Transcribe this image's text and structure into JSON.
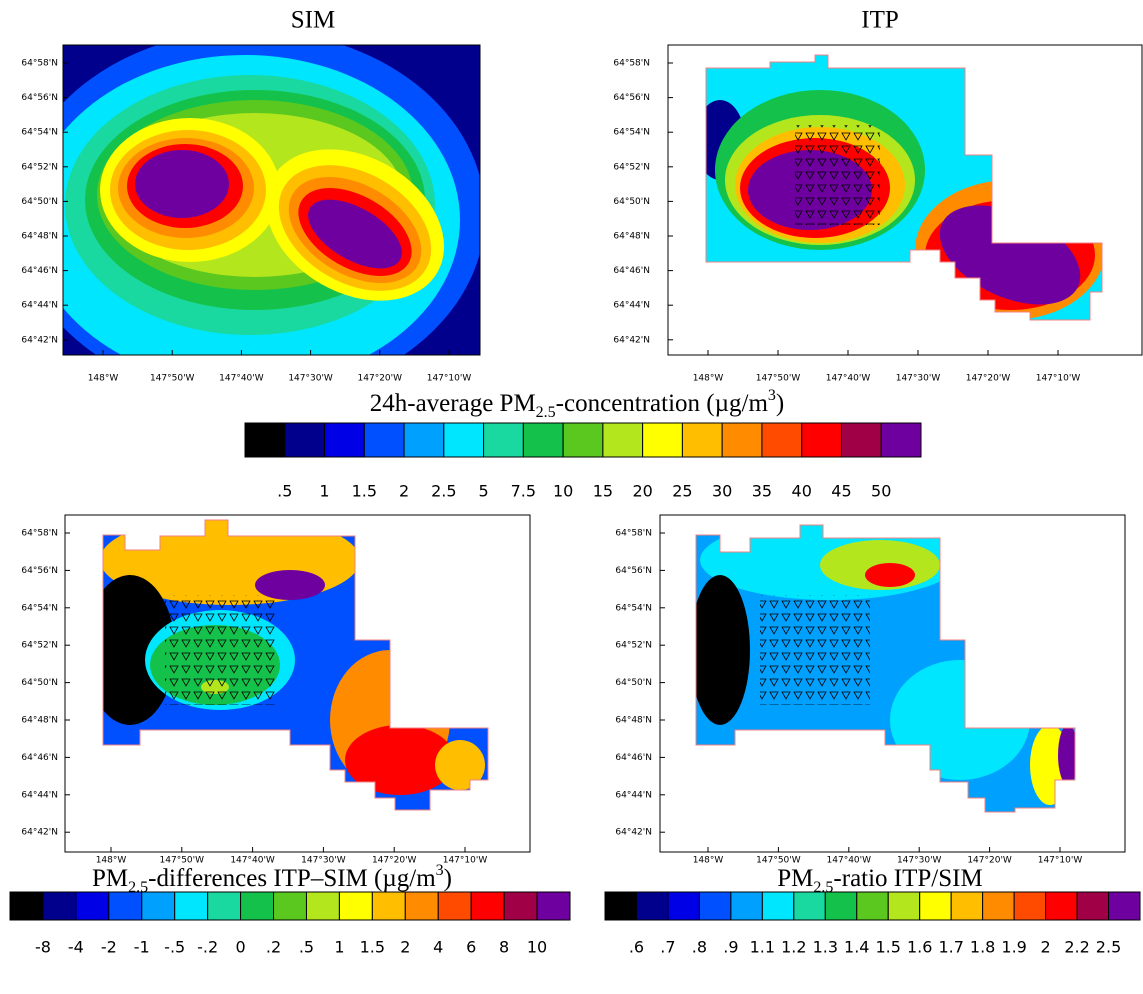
{
  "panels": [
    {
      "title": "SIM",
      "yticks": [
        "64°58'N",
        "64°56'N",
        "64°54'N",
        "64°52'N",
        "64°50'N",
        "64°48'N",
        "64°46'N",
        "64°44'N",
        "64°42'N"
      ],
      "xticks": [
        "148°W",
        "147°50'W",
        "147°40'W",
        "147°30'W",
        "147°20'W",
        "147°10'W"
      ]
    },
    {
      "title": "ITP",
      "yticks": [
        "64°58'N",
        "64°56'N",
        "64°54'N",
        "64°52'N",
        "64°50'N",
        "64°48'N",
        "64°46'N",
        "64°44'N",
        "64°42'N"
      ],
      "xticks": [
        "148°W",
        "147°50'W",
        "147°40'W",
        "147°30'W",
        "147°20'W",
        "147°10'W"
      ]
    },
    {
      "yticks": [
        "64°58'N",
        "64°56'N",
        "64°54'N",
        "64°52'N",
        "64°50'N",
        "64°48'N",
        "64°46'N",
        "64°44'N",
        "64°42'N"
      ],
      "xticks": [
        "148°W",
        "147°50'W",
        "147°40'W",
        "147°30'W",
        "147°20'W",
        "147°10'W"
      ]
    },
    {
      "yticks": [
        "64°58'N",
        "64°56'N",
        "64°54'N",
        "64°52'N",
        "64°50'N",
        "64°48'N",
        "64°46'N",
        "64°44'N",
        "64°42'N"
      ],
      "xticks": [
        "148°W",
        "147°50'W",
        "147°40'W",
        "147°30'W",
        "147°20'W",
        "147°10'W"
      ]
    }
  ],
  "colorbars": [
    {
      "title": [
        {
          "text": "24h-average PM"
        },
        {
          "text": "2.5",
          "shift": "sub"
        },
        {
          "text": "-concentration (µg/m"
        },
        {
          "text": "3",
          "shift": "super"
        },
        {
          "text": ")"
        }
      ],
      "colors": [
        "#000000",
        "#00008c",
        "#0000e6",
        "#0050ff",
        "#00a0ff",
        "#00e6ff",
        "#19d9a0",
        "#14c24b",
        "#5ac81e",
        "#b4e61e",
        "#ffff00",
        "#ffbe00",
        "#ff8c00",
        "#ff4b00",
        "#ff0000",
        "#a00046",
        "#6e00a0"
      ],
      "labels": [
        ".5",
        "1",
        "1.5",
        "2",
        "2.5",
        "5",
        "7.5",
        "10",
        "15",
        "20",
        "25",
        "30",
        "35",
        "40",
        "45",
        "50"
      ]
    },
    {
      "title": [
        {
          "text": "PM"
        },
        {
          "text": "2.5",
          "shift": "sub"
        },
        {
          "text": "-differences ITP–SIM (µg/m"
        },
        {
          "text": "3",
          "shift": "super"
        },
        {
          "text": ")"
        }
      ],
      "colors": [
        "#000000",
        "#00008c",
        "#0000e6",
        "#0050ff",
        "#00a0ff",
        "#00e6ff",
        "#19d9a0",
        "#14c24b",
        "#5ac81e",
        "#b4e61e",
        "#ffff00",
        "#ffbe00",
        "#ff8c00",
        "#ff4b00",
        "#ff0000",
        "#a00046",
        "#6e00a0"
      ],
      "labels": [
        "-8",
        "-4",
        "-2",
        "-1",
        "-.5",
        "-.2",
        "0",
        ".2",
        ".5",
        "1",
        "1.5",
        "2",
        "4",
        "6",
        "8",
        "10"
      ]
    },
    {
      "title": [
        {
          "text": "PM"
        },
        {
          "text": "2.5",
          "shift": "sub"
        },
        {
          "text": "-ratio ITP/SIM"
        }
      ],
      "colors": [
        "#000000",
        "#00008c",
        "#0000e6",
        "#0050ff",
        "#00a0ff",
        "#00e6ff",
        "#19d9a0",
        "#14c24b",
        "#5ac81e",
        "#b4e61e",
        "#ffff00",
        "#ffbe00",
        "#ff8c00",
        "#ff4b00",
        "#ff0000",
        "#a00046",
        "#6e00a0"
      ],
      "labels": [
        ".6",
        ".7",
        ".8",
        ".9",
        "1.1",
        "1.2",
        "1.3",
        "1.4",
        "1.5",
        "1.6",
        "1.7",
        "1.8",
        "1.9",
        "2",
        "2.2",
        "2.5"
      ]
    }
  ]
}
